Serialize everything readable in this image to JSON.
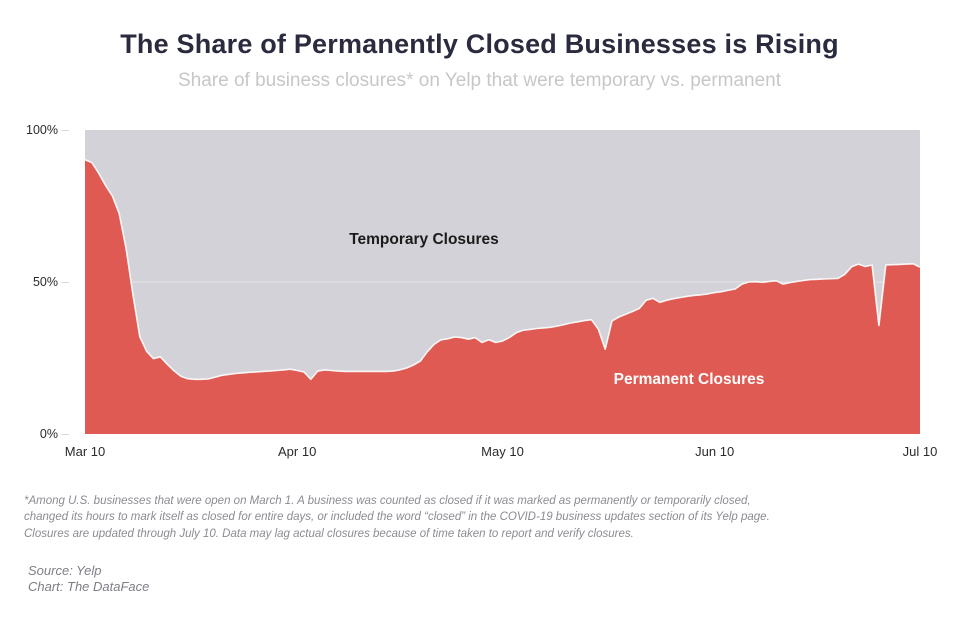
{
  "header": {
    "title": "The Share of Permanently Closed Businesses is Rising",
    "subtitle": "Share of business closures* on Yelp that were temporary vs. permanent"
  },
  "chart_data": {
    "type": "area",
    "stacked_to_100_percent": true,
    "unit": "%",
    "grid": "single faint white line at 50%",
    "legend": "in-plot area labels",
    "x_axis": {
      "start": "Mar 10",
      "end": "Jul 10",
      "tick_labels": [
        "Mar 10",
        "Apr 10",
        "May 10",
        "Jun 10",
        "Jul 10"
      ],
      "tick_day_offsets": [
        0,
        31,
        61,
        92,
        122
      ]
    },
    "y_axis": {
      "tick_labels": [
        "0%",
        "50%",
        "100%"
      ],
      "tick_values": [
        0,
        50,
        100
      ],
      "min": 0,
      "max": 100
    },
    "series": [
      {
        "name": "Permanent Closures",
        "color": "#df5a52",
        "label_color": "#fdfdfd",
        "values_note": "daily share (%) of closures that were permanent, day 0 = Mar 10 through day 122 = Jul 10",
        "values_pct_by_day": [
          90.2,
          89.3,
          85.8,
          81.8,
          78.3,
          72.5,
          61.0,
          46.0,
          32.0,
          27.2,
          24.8,
          25.4,
          23.0,
          20.8,
          19.0,
          18.2,
          18.0,
          18.0,
          18.1,
          18.7,
          19.3,
          19.6,
          19.9,
          20.1,
          20.3,
          20.4,
          20.6,
          20.7,
          20.9,
          21.1,
          21.3,
          20.9,
          20.4,
          18.0,
          20.7,
          21.1,
          20.9,
          20.7,
          20.6,
          20.6,
          20.6,
          20.6,
          20.6,
          20.6,
          20.6,
          20.7,
          21.1,
          21.7,
          22.7,
          24.0,
          27.0,
          29.5,
          31.0,
          31.3,
          31.9,
          31.7,
          31.2,
          31.7,
          30.1,
          31.0,
          30.1,
          30.6,
          31.7,
          33.3,
          34.1,
          34.4,
          34.7,
          34.9,
          35.1,
          35.5,
          36.0,
          36.5,
          36.9,
          37.3,
          37.6,
          34.5,
          27.9,
          37.2,
          38.5,
          39.4,
          40.3,
          41.3,
          44.0,
          44.6,
          43.3,
          44.0,
          44.5,
          44.9,
          45.3,
          45.6,
          45.8,
          46.1,
          46.5,
          46.8,
          47.3,
          47.7,
          49.3,
          50.0,
          50.1,
          49.9,
          50.2,
          50.4,
          49.3,
          49.8,
          50.2,
          50.5,
          50.8,
          50.9,
          51.0,
          51.1,
          51.2,
          52.5,
          55.0,
          55.9,
          55.1,
          55.6,
          35.7,
          55.6,
          55.7,
          55.8,
          55.9,
          56.0,
          54.9
        ]
      },
      {
        "name": "Temporary Closures",
        "color": "#d2d2d8",
        "label_color": "#1b1b1b",
        "derivation": "remainder to 100% above permanent share"
      }
    ]
  },
  "footnotes": {
    "line1": "*Among U.S. businesses that were open on March 1. A business was counted as closed if it was marked as permanently or temporarily closed,",
    "line2": "changed its hours to mark itself as closed for entire days, or included the word “closed” in the COVID-19 business updates section of its Yelp page.",
    "line3": "Closures are updated through July 10. Data may lag actual closures because of time taken to report and verify closures."
  },
  "credits": {
    "source_line": "Source: Yelp",
    "chart_line": "Chart: The DataFace"
  }
}
